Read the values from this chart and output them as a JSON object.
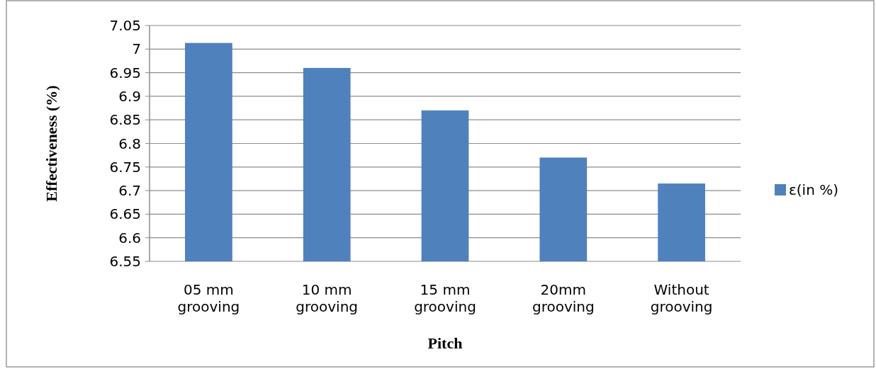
{
  "chart_data": {
    "type": "bar",
    "xlabel": "Pitch",
    "ylabel": "Effectiveness (%)",
    "categories": [
      "05 mm grooving",
      "10 mm grooving",
      "15 mm grooving",
      "20mm grooving",
      "Without grooving"
    ],
    "series": [
      {
        "name": "ε(in %)",
        "color": "#4f81bd",
        "values": [
          7.013,
          6.96,
          6.87,
          6.77,
          6.715
        ]
      }
    ],
    "ylim": [
      6.55,
      7.05
    ],
    "yticks": [
      6.55,
      6.6,
      6.65,
      6.7,
      6.75,
      6.8,
      6.85,
      6.9,
      6.95,
      7,
      7.05
    ],
    "grid": "y",
    "legend": "right"
  }
}
